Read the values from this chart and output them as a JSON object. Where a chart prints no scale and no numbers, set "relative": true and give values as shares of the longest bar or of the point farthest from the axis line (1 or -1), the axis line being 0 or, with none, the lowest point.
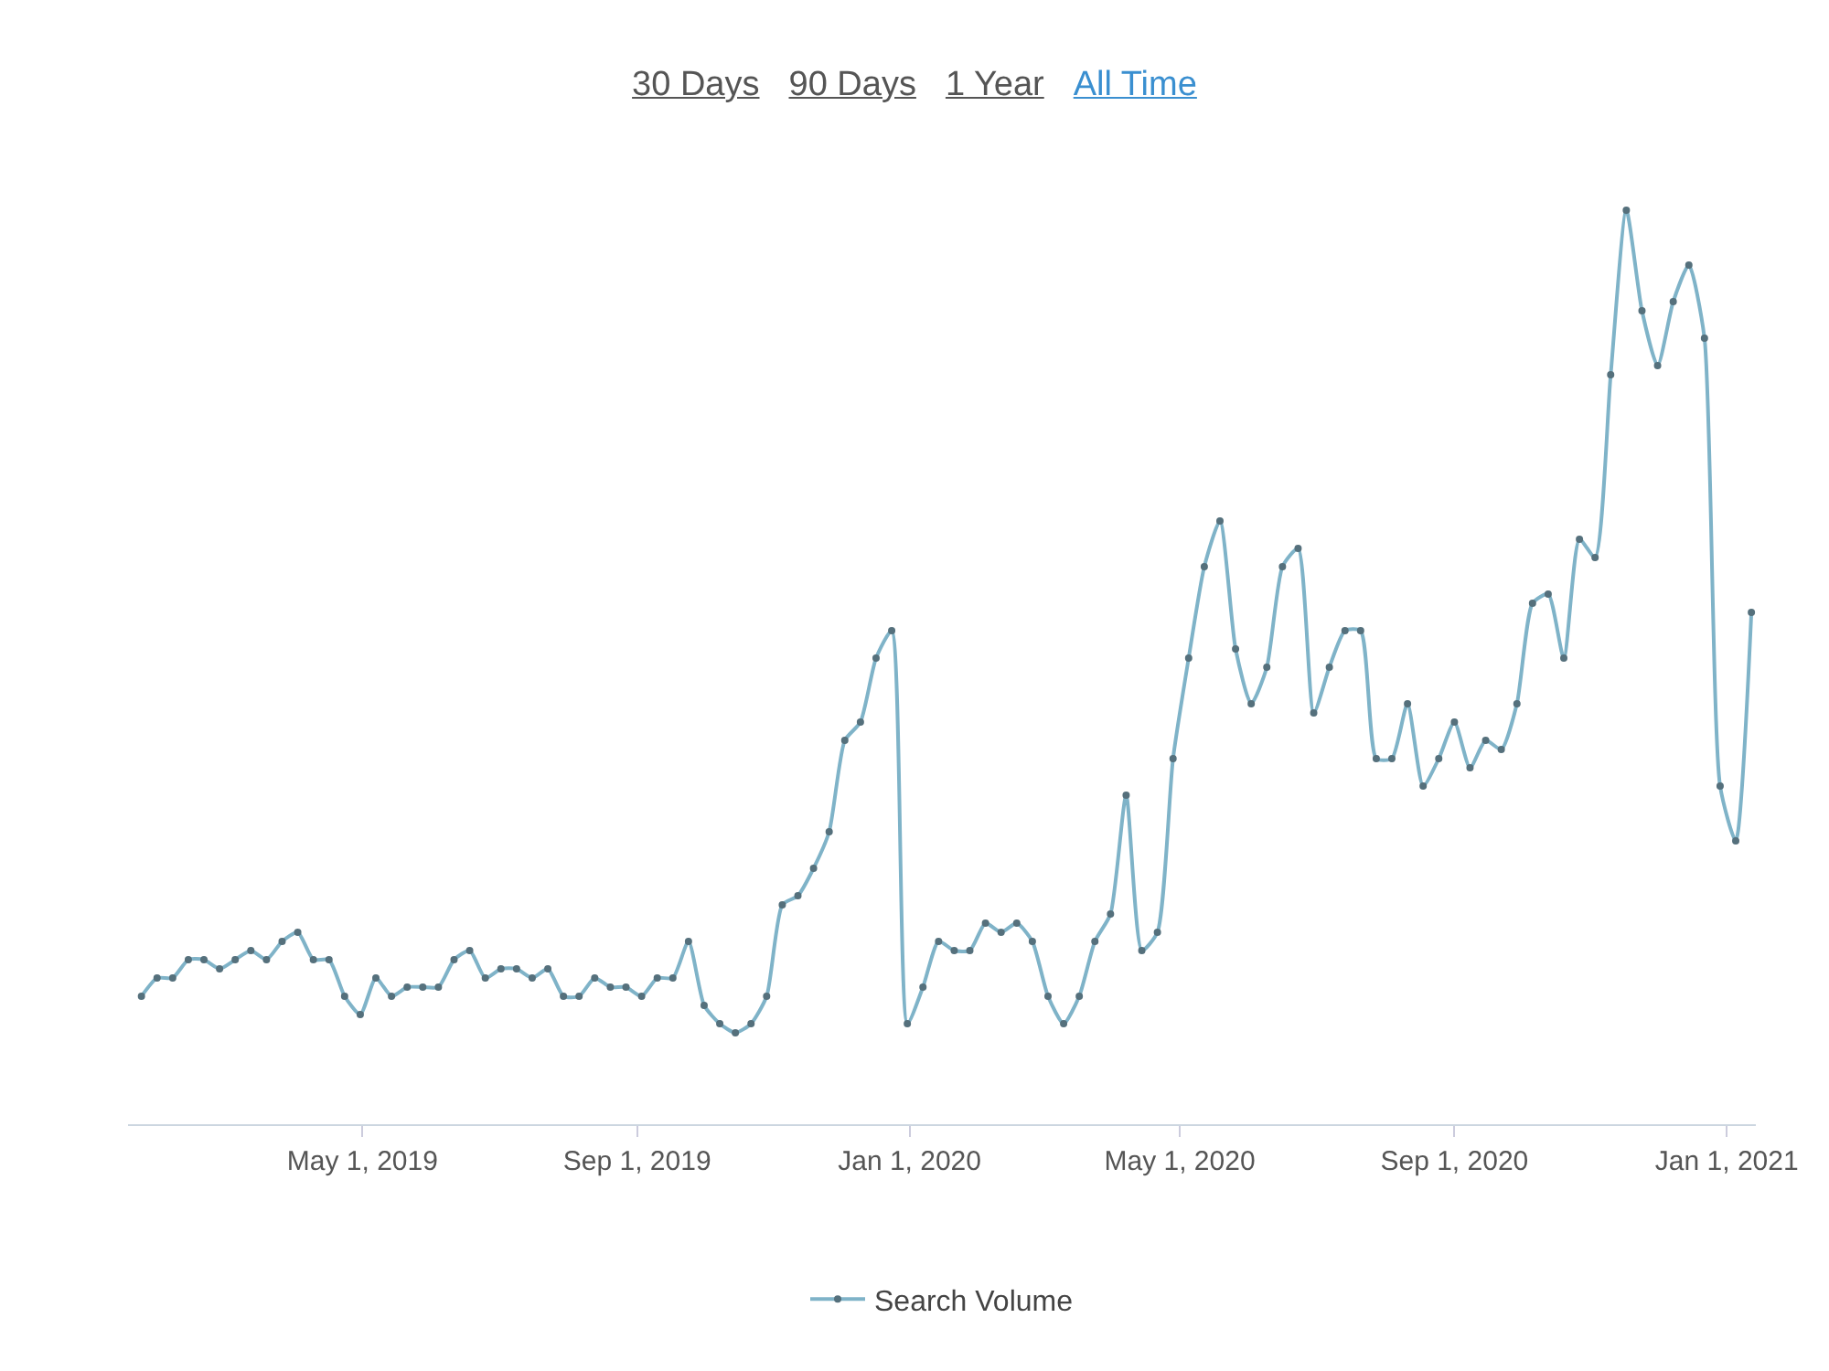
{
  "chart_data": {
    "type": "line",
    "relative": true,
    "annotations": [
      "30 Days",
      "90 Days",
      "1 Year",
      "All Time"
    ],
    "x": [
      "2019-01-22",
      "2019-01-29",
      "2019-02-05",
      "2019-02-12",
      "2019-02-19",
      "2019-02-26",
      "2019-03-05",
      "2019-03-12",
      "2019-03-19",
      "2019-03-26",
      "2019-04-02",
      "2019-04-09",
      "2019-04-16",
      "2019-04-23",
      "2019-04-30",
      "2019-05-07",
      "2019-05-14",
      "2019-05-21",
      "2019-05-28",
      "2019-06-04",
      "2019-06-11",
      "2019-06-18",
      "2019-06-25",
      "2019-07-02",
      "2019-07-09",
      "2019-07-16",
      "2019-07-23",
      "2019-07-30",
      "2019-08-06",
      "2019-08-13",
      "2019-08-20",
      "2019-08-27",
      "2019-09-03",
      "2019-09-10",
      "2019-09-17",
      "2019-09-24",
      "2019-10-01",
      "2019-10-08",
      "2019-10-15",
      "2019-10-22",
      "2019-10-29",
      "2019-11-05",
      "2019-11-12",
      "2019-11-19",
      "2019-11-26",
      "2019-12-03",
      "2019-12-10",
      "2019-12-17",
      "2019-12-24",
      "2019-12-31",
      "2020-01-07",
      "2020-01-14",
      "2020-01-21",
      "2020-01-28",
      "2020-02-04",
      "2020-02-11",
      "2020-02-18",
      "2020-02-25",
      "2020-03-03",
      "2020-03-10",
      "2020-03-17",
      "2020-03-24",
      "2020-03-31",
      "2020-04-07",
      "2020-04-14",
      "2020-04-21",
      "2020-04-28",
      "2020-05-05",
      "2020-05-12",
      "2020-05-19",
      "2020-05-26",
      "2020-06-02",
      "2020-06-09",
      "2020-06-16",
      "2020-06-23",
      "2020-06-30",
      "2020-07-07",
      "2020-07-14",
      "2020-07-21",
      "2020-07-28",
      "2020-08-04",
      "2020-08-11",
      "2020-08-18",
      "2020-08-25",
      "2020-09-01",
      "2020-09-08",
      "2020-09-15",
      "2020-09-22",
      "2020-09-29",
      "2020-10-06",
      "2020-10-13",
      "2020-10-20",
      "2020-10-27",
      "2020-11-03",
      "2020-11-10",
      "2020-11-17",
      "2020-11-24",
      "2020-12-01",
      "2020-12-08",
      "2020-12-15",
      "2020-12-22",
      "2020-12-29",
      "2021-01-05",
      "2021-01-12"
    ],
    "series": [
      {
        "name": "Search Volume",
        "color": "#7fb3c8",
        "values": [
          0.14,
          0.16,
          0.16,
          0.18,
          0.18,
          0.17,
          0.18,
          0.19,
          0.18,
          0.2,
          0.21,
          0.18,
          0.18,
          0.14,
          0.12,
          0.16,
          0.14,
          0.15,
          0.15,
          0.15,
          0.18,
          0.19,
          0.16,
          0.17,
          0.17,
          0.16,
          0.17,
          0.14,
          0.14,
          0.16,
          0.15,
          0.15,
          0.14,
          0.16,
          0.16,
          0.2,
          0.13,
          0.11,
          0.1,
          0.11,
          0.14,
          0.24,
          0.25,
          0.28,
          0.32,
          0.42,
          0.44,
          0.51,
          0.54,
          0.11,
          0.15,
          0.2,
          0.19,
          0.19,
          0.22,
          0.21,
          0.22,
          0.2,
          0.14,
          0.11,
          0.14,
          0.2,
          0.23,
          0.36,
          0.19,
          0.21,
          0.4,
          0.51,
          0.61,
          0.66,
          0.52,
          0.46,
          0.5,
          0.61,
          0.63,
          0.45,
          0.5,
          0.54,
          0.54,
          0.4,
          0.4,
          0.46,
          0.37,
          0.4,
          0.44,
          0.39,
          0.42,
          0.41,
          0.46,
          0.57,
          0.58,
          0.51,
          0.64,
          0.62,
          0.82,
          1,
          0.89,
          0.83,
          0.9,
          0.94,
          0.86,
          0.37,
          0.31,
          0.56
        ]
      }
    ],
    "xlim": [
      "2019-01-16",
      "2021-01-14"
    ],
    "xticks": [
      {
        "value": "2019-05-01",
        "label": "May 1, 2019"
      },
      {
        "value": "2019-09-01",
        "label": "Sep 1, 2019"
      },
      {
        "value": "2020-01-01",
        "label": "Jan 1, 2020"
      },
      {
        "value": "2020-05-01",
        "label": "May 1, 2020"
      },
      {
        "value": "2020-09-01",
        "label": "Sep 1, 2020"
      },
      {
        "value": "2021-01-01",
        "label": "Jan 1, 2021"
      }
    ],
    "marker": "circle",
    "legend": "bottom"
  }
}
